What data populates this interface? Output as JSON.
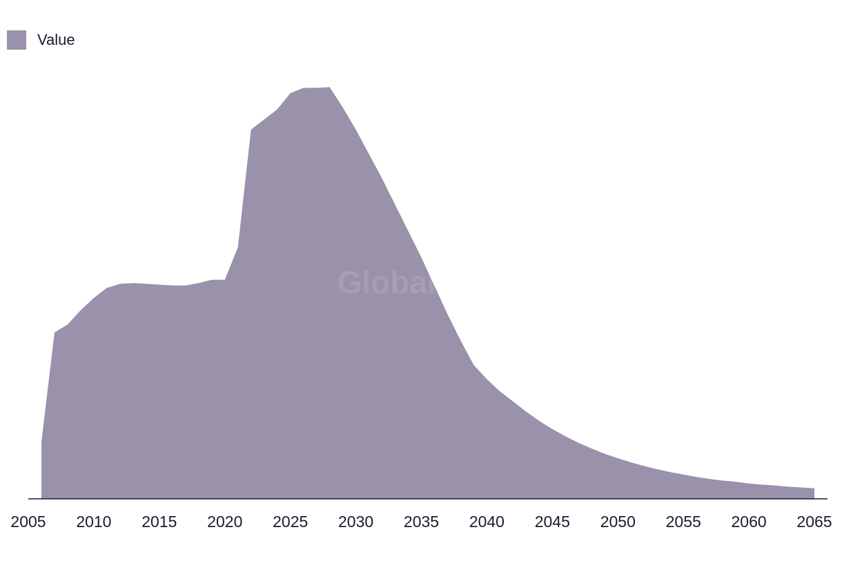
{
  "legend": {
    "label": "Value",
    "color": "#9a91aa"
  },
  "watermark": "GlobalData",
  "chart_data": {
    "type": "area",
    "title": "",
    "xlabel": "",
    "ylabel": "",
    "xlim": [
      2005,
      2065
    ],
    "ylim": [
      0,
      100
    ],
    "x_ticks": [
      "2005",
      "2010",
      "2015",
      "2020",
      "2025",
      "2030",
      "2035",
      "2040",
      "2045",
      "2050",
      "2055",
      "2060",
      "2065"
    ],
    "grid": false,
    "legend_position": "top-left",
    "series": [
      {
        "name": "Value",
        "color": "#9a91aa",
        "x": [
          2006,
          2007,
          2008,
          2009,
          2010,
          2011,
          2012,
          2013,
          2014,
          2015,
          2016,
          2017,
          2018,
          2019,
          2020,
          2021,
          2022,
          2023,
          2024,
          2025,
          2026,
          2027,
          2028,
          2029,
          2030,
          2031,
          2032,
          2033,
          2034,
          2035,
          2036,
          2037,
          2038,
          2039,
          2040,
          2041,
          2042,
          2043,
          2044,
          2045,
          2046,
          2047,
          2048,
          2049,
          2050,
          2051,
          2052,
          2053,
          2054,
          2055,
          2056,
          2057,
          2058,
          2059,
          2060,
          2061,
          2062,
          2063,
          2064,
          2065
        ],
        "values": [
          14,
          41,
          43,
          46.5,
          49.5,
          52,
          53,
          53.2,
          53,
          52.8,
          52.6,
          52.6,
          53.2,
          54,
          54,
          62,
          91,
          93.5,
          96,
          100,
          101.3,
          101.3,
          101.5,
          96.5,
          91,
          85,
          79,
          72.5,
          66,
          59.5,
          52.5,
          45.5,
          39,
          33,
          29.5,
          26.5,
          24,
          21.5,
          19.2,
          17.2,
          15.4,
          13.8,
          12.4,
          11.1,
          10,
          9,
          8.1,
          7.3,
          6.6,
          6,
          5.4,
          4.9,
          4.5,
          4.2,
          3.8,
          3.5,
          3.3,
          3,
          2.8,
          2.6
        ]
      }
    ]
  }
}
